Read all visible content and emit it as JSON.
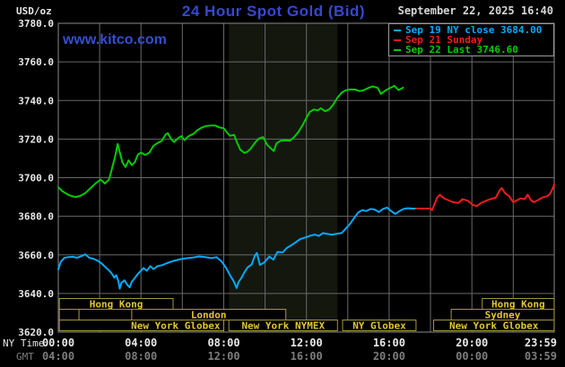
{
  "header": {
    "unit_label": "USD/oz",
    "title": "24 Hour Spot Gold (Bid)",
    "datetime": "September 22, 2025 16:40",
    "watermark": "www.kitco.com"
  },
  "legend": [
    {
      "label": "Sep 19 NY close 3684.00",
      "color": "#00aaff"
    },
    {
      "label": "Sep 21 Sunday",
      "color": "#ee1c1c"
    },
    {
      "label": "Sep 22 Last 3746.60",
      "color": "#00cc00"
    }
  ],
  "axis": {
    "ny_time_label": "NY Time",
    "gmt_label": "GMT"
  },
  "chart_data": {
    "type": "line",
    "title": "24 Hour Spot Gold (Bid)",
    "ylabel": "USD/oz",
    "y_min": 3620,
    "y_max": 3780,
    "y_tick_step": 20,
    "x_min": 0,
    "x_max": 23.983,
    "grid": "on",
    "legend_position": "top-right",
    "y_ticks": [
      {
        "label": "3780.0",
        "value": 3780
      },
      {
        "label": "3760.0",
        "value": 3760
      },
      {
        "label": "3740.0",
        "value": 3740
      },
      {
        "label": "3720.0",
        "value": 3720
      },
      {
        "label": "3700.0",
        "value": 3700
      },
      {
        "label": "3680.0",
        "value": 3680
      },
      {
        "label": "3660.0",
        "value": 3660
      },
      {
        "label": "3640.0",
        "value": 3640
      },
      {
        "label": "3620.0",
        "value": 3620
      }
    ],
    "x_ticks_ny": [
      {
        "label": "00:00",
        "t": 0
      },
      {
        "label": "04:00",
        "t": 4
      },
      {
        "label": "08:00",
        "t": 8
      },
      {
        "label": "12:00",
        "t": 12
      },
      {
        "label": "16:00",
        "t": 16
      },
      {
        "label": "20:00",
        "t": 20
      },
      {
        "label": "23:59",
        "t": 23.983,
        "align": "end"
      }
    ],
    "x_ticks_gmt": [
      {
        "label": "04:00",
        "t": 0
      },
      {
        "label": "08:00",
        "t": 4
      },
      {
        "label": "12:00",
        "t": 8
      },
      {
        "label": "16:00",
        "t": 12
      },
      {
        "label": "20:00",
        "t": 16
      },
      {
        "label": "00:00",
        "t": 20
      },
      {
        "label": "03:59",
        "t": 23.983,
        "align": "end"
      }
    ],
    "shaded_region": {
      "start": 8.25,
      "end": 13.5
    },
    "sessions": [
      {
        "boxes": [
          {
            "label": "Hong Kong",
            "start": 0.05,
            "end": 5.55
          },
          {
            "label": "Hong Kong",
            "start": 20.5,
            "end": 23.98
          }
        ]
      },
      {
        "boxes": [
          {
            "label": "",
            "start": 0.05,
            "end": 1.0
          },
          {
            "label": "",
            "start": 1.0,
            "end": 3.55
          },
          {
            "label": "London",
            "start": 3.55,
            "end": 11.0
          },
          {
            "label": "Sydney",
            "start": 19.0,
            "end": 23.98
          }
        ]
      },
      {
        "boxes": [
          {
            "label": "New York Globex",
            "start": 0.05,
            "end": 8.0,
            "align": "end"
          },
          {
            "label": "New York NYMEX",
            "start": 8.25,
            "end": 13.5
          },
          {
            "label": "NY Globex",
            "start": 13.75,
            "end": 17.3
          },
          {
            "label": "New York Globex",
            "start": 18.15,
            "end": 23.98
          }
        ]
      }
    ],
    "series": [
      {
        "id": "sep19",
        "name": "Sep 19 NY close 3684.00",
        "color": "#00aaff",
        "points": [
          [
            0,
            3652.5
          ],
          [
            0.12,
            3656.5
          ],
          [
            0.3,
            3658.5
          ],
          [
            0.5,
            3658.8
          ],
          [
            0.7,
            3659
          ],
          [
            0.9,
            3658.5
          ],
          [
            1.1,
            3659.3
          ],
          [
            1.3,
            3660.3
          ],
          [
            1.5,
            3658.5
          ],
          [
            1.7,
            3658
          ],
          [
            1.9,
            3657
          ],
          [
            2.1,
            3655.5
          ],
          [
            2.3,
            3653.5
          ],
          [
            2.5,
            3651.5
          ],
          [
            2.62,
            3649.8
          ],
          [
            2.7,
            3648.2
          ],
          [
            2.8,
            3649.5
          ],
          [
            2.9,
            3646.5
          ],
          [
            2.97,
            3642.5
          ],
          [
            3.05,
            3645.5
          ],
          [
            3.2,
            3646.8
          ],
          [
            3.35,
            3644.3
          ],
          [
            3.45,
            3643.2
          ],
          [
            3.55,
            3646
          ],
          [
            3.7,
            3648
          ],
          [
            3.85,
            3650.2
          ],
          [
            4.0,
            3651.8
          ],
          [
            4.12,
            3653.2
          ],
          [
            4.28,
            3651.8
          ],
          [
            4.45,
            3654.2
          ],
          [
            4.6,
            3652.6
          ],
          [
            4.8,
            3654.2
          ],
          [
            5.0,
            3654.6
          ],
          [
            5.25,
            3655.7
          ],
          [
            5.55,
            3656.8
          ],
          [
            5.85,
            3657.6
          ],
          [
            6.15,
            3658.2
          ],
          [
            6.5,
            3658.6
          ],
          [
            6.8,
            3659.2
          ],
          [
            7.1,
            3658.8
          ],
          [
            7.4,
            3658.3
          ],
          [
            7.65,
            3658.8
          ],
          [
            7.9,
            3656.5
          ],
          [
            8.1,
            3653.5
          ],
          [
            8.3,
            3649.5
          ],
          [
            8.45,
            3647
          ],
          [
            8.55,
            3644.8
          ],
          [
            8.62,
            3642.8
          ],
          [
            8.72,
            3646
          ],
          [
            8.85,
            3648
          ],
          [
            9.0,
            3651
          ],
          [
            9.15,
            3653.5
          ],
          [
            9.35,
            3655
          ],
          [
            9.5,
            3659.5
          ],
          [
            9.6,
            3661
          ],
          [
            9.75,
            3654.8
          ],
          [
            9.95,
            3656
          ],
          [
            10.2,
            3659.1
          ],
          [
            10.4,
            3657.5
          ],
          [
            10.6,
            3661.5
          ],
          [
            10.85,
            3661.3
          ],
          [
            11.05,
            3663.6
          ],
          [
            11.3,
            3665.2
          ],
          [
            11.5,
            3666.7
          ],
          [
            11.7,
            3668.2
          ],
          [
            11.95,
            3669
          ],
          [
            12.2,
            3670
          ],
          [
            12.4,
            3670.5
          ],
          [
            12.6,
            3669.8
          ],
          [
            12.8,
            3671.3
          ],
          [
            13.05,
            3670.8
          ],
          [
            13.25,
            3670.5
          ],
          [
            13.5,
            3671
          ],
          [
            13.7,
            3671.3
          ],
          [
            13.9,
            3673.6
          ],
          [
            14.1,
            3676
          ],
          [
            14.3,
            3679
          ],
          [
            14.5,
            3681.9
          ],
          [
            14.7,
            3683.2
          ],
          [
            14.9,
            3682.7
          ],
          [
            15.1,
            3683.8
          ],
          [
            15.3,
            3683.5
          ],
          [
            15.5,
            3682.2
          ],
          [
            15.7,
            3683.8
          ],
          [
            15.9,
            3684.5
          ],
          [
            16.1,
            3682.7
          ],
          [
            16.3,
            3681.2
          ],
          [
            16.5,
            3682.7
          ],
          [
            16.7,
            3683.8
          ],
          [
            16.9,
            3684.2
          ],
          [
            17.1,
            3684
          ],
          [
            17.3,
            3684
          ]
        ]
      },
      {
        "id": "sep21",
        "name": "Sep 21 Sunday",
        "color": "#ee1c1c",
        "points": [
          [
            17.3,
            3684
          ],
          [
            17.8,
            3684
          ],
          [
            18.0,
            3684
          ],
          [
            18.08,
            3683.2
          ],
          [
            18.2,
            3686.5
          ],
          [
            18.32,
            3689.6
          ],
          [
            18.45,
            3691.2
          ],
          [
            18.65,
            3689.3
          ],
          [
            18.85,
            3688.4
          ],
          [
            19.1,
            3687.3
          ],
          [
            19.35,
            3686.9
          ],
          [
            19.55,
            3688.9
          ],
          [
            19.8,
            3688.1
          ],
          [
            20.05,
            3685.8
          ],
          [
            20.25,
            3685.3
          ],
          [
            20.45,
            3686.9
          ],
          [
            20.7,
            3688.1
          ],
          [
            20.9,
            3688.9
          ],
          [
            21.15,
            3689.6
          ],
          [
            21.35,
            3693.5
          ],
          [
            21.45,
            3694.6
          ],
          [
            21.6,
            3692
          ],
          [
            21.8,
            3690.4
          ],
          [
            22.0,
            3687.3
          ],
          [
            22.15,
            3688.1
          ],
          [
            22.35,
            3689.3
          ],
          [
            22.55,
            3688.9
          ],
          [
            22.7,
            3691.2
          ],
          [
            22.85,
            3688.4
          ],
          [
            23.0,
            3687.3
          ],
          [
            23.2,
            3688.4
          ],
          [
            23.45,
            3689.9
          ],
          [
            23.65,
            3690.4
          ],
          [
            23.8,
            3692
          ],
          [
            23.9,
            3694.3
          ],
          [
            23.98,
            3696.5
          ]
        ]
      },
      {
        "id": "sep22",
        "name": "Sep 22 Last 3746.60",
        "color": "#00cc00",
        "points": [
          [
            0,
            3695
          ],
          [
            0.2,
            3693
          ],
          [
            0.5,
            3691
          ],
          [
            0.8,
            3690
          ],
          [
            1.05,
            3690.5
          ],
          [
            1.3,
            3692
          ],
          [
            1.6,
            3695
          ],
          [
            1.85,
            3697.5
          ],
          [
            2.05,
            3699
          ],
          [
            2.25,
            3697
          ],
          [
            2.45,
            3699
          ],
          [
            2.6,
            3705
          ],
          [
            2.75,
            3711
          ],
          [
            2.87,
            3717.5
          ],
          [
            3.0,
            3712
          ],
          [
            3.1,
            3708
          ],
          [
            3.25,
            3705.5
          ],
          [
            3.4,
            3709
          ],
          [
            3.55,
            3706.5
          ],
          [
            3.7,
            3708
          ],
          [
            3.85,
            3712
          ],
          [
            4.0,
            3713
          ],
          [
            4.2,
            3711.8
          ],
          [
            4.4,
            3713
          ],
          [
            4.6,
            3716.5
          ],
          [
            4.8,
            3718
          ],
          [
            5.0,
            3719
          ],
          [
            5.2,
            3722.5
          ],
          [
            5.3,
            3723
          ],
          [
            5.45,
            3720
          ],
          [
            5.6,
            3718.5
          ],
          [
            5.8,
            3720.5
          ],
          [
            5.95,
            3721.5
          ],
          [
            6.1,
            3719.5
          ],
          [
            6.3,
            3721.5
          ],
          [
            6.55,
            3722.8
          ],
          [
            6.75,
            3724.8
          ],
          [
            6.95,
            3726
          ],
          [
            7.15,
            3726.8
          ],
          [
            7.4,
            3727
          ],
          [
            7.6,
            3727
          ],
          [
            7.8,
            3726
          ],
          [
            8.0,
            3725.6
          ],
          [
            8.15,
            3723.5
          ],
          [
            8.3,
            3721.7
          ],
          [
            8.5,
            3722.2
          ],
          [
            8.65,
            3718
          ],
          [
            8.8,
            3714.5
          ],
          [
            9.0,
            3712.8
          ],
          [
            9.15,
            3713.5
          ],
          [
            9.3,
            3715
          ],
          [
            9.5,
            3718
          ],
          [
            9.7,
            3720.3
          ],
          [
            9.9,
            3721
          ],
          [
            10.1,
            3717
          ],
          [
            10.3,
            3715
          ],
          [
            10.42,
            3713.8
          ],
          [
            10.55,
            3717.8
          ],
          [
            10.75,
            3719.1
          ],
          [
            11.0,
            3719.4
          ],
          [
            11.2,
            3719.1
          ],
          [
            11.4,
            3721
          ],
          [
            11.6,
            3723.5
          ],
          [
            11.8,
            3727
          ],
          [
            12.0,
            3731
          ],
          [
            12.15,
            3734
          ],
          [
            12.35,
            3735.3
          ],
          [
            12.55,
            3734.9
          ],
          [
            12.7,
            3736
          ],
          [
            12.9,
            3734.4
          ],
          [
            13.1,
            3735.4
          ],
          [
            13.3,
            3738
          ],
          [
            13.5,
            3741.5
          ],
          [
            13.7,
            3744
          ],
          [
            13.9,
            3745.3
          ],
          [
            14.1,
            3745.7
          ],
          [
            14.35,
            3745.7
          ],
          [
            14.55,
            3744.9
          ],
          [
            14.75,
            3745.2
          ],
          [
            15.0,
            3746.5
          ],
          [
            15.2,
            3747.3
          ],
          [
            15.45,
            3746.5
          ],
          [
            15.6,
            3743.4
          ],
          [
            15.85,
            3745.4
          ],
          [
            16.05,
            3746.5
          ],
          [
            16.25,
            3747.6
          ],
          [
            16.45,
            3745.4
          ],
          [
            16.67,
            3746.6
          ]
        ]
      }
    ],
    "colors": {
      "background": "#000000",
      "grid": "#696969",
      "plot_border": "#8a8a8a",
      "shaded_band": "#14170e",
      "axis_text": "#e8e8e8",
      "gmt_text": "#7d7d7d",
      "session_border": "#a39536",
      "session_text": "#e3c531"
    }
  }
}
